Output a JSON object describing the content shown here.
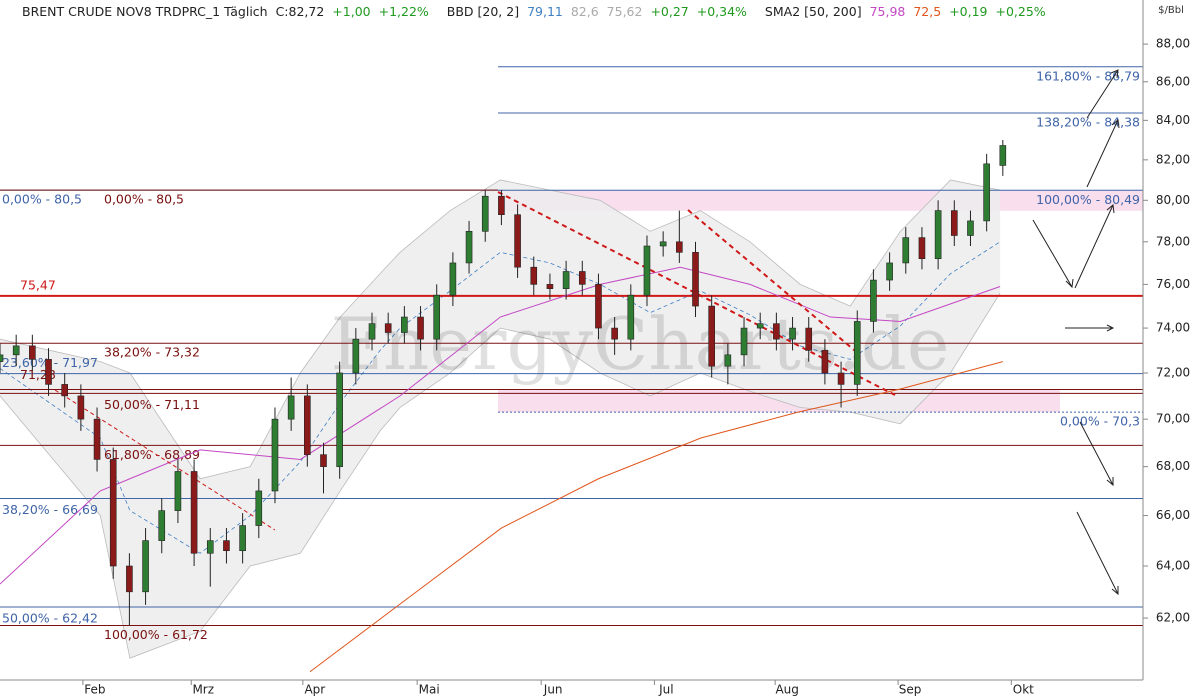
{
  "chart_data": {
    "type": "candlestick",
    "header": {
      "title": "BRENT CRUDE NOV8 TRDPRC_1 Täglich",
      "close": "C:82,72",
      "change": "+1,00",
      "change_pct": "+1,22%"
    },
    "bbd": {
      "name": "BBD [20, 2]",
      "values": [
        "79,11",
        "82,6",
        "75,62"
      ],
      "change": "+0,27",
      "change_pct": "+0,34%"
    },
    "sma": {
      "name": "SMA2 [50, 200]",
      "values": [
        "75,98",
        "72,5"
      ],
      "change": "+0,19",
      "change_pct": "+0,25%"
    },
    "y_unit": "$/Bbl",
    "watermark": "EnergyCharts.de",
    "log_scale": true,
    "ylim": [
      59.7,
      90.4
    ],
    "yticks": [
      {
        "value": 62,
        "label": "62,00"
      },
      {
        "value": 64,
        "label": "64,00"
      },
      {
        "value": 66,
        "label": "66,00"
      },
      {
        "value": 68,
        "label": "68,00"
      },
      {
        "value": 70,
        "label": "70,00"
      },
      {
        "value": 72,
        "label": "72,00"
      },
      {
        "value": 74,
        "label": "74,00"
      },
      {
        "value": 76,
        "label": "76,00"
      },
      {
        "value": 78,
        "label": "78,00"
      },
      {
        "value": 80,
        "label": "80,00"
      },
      {
        "value": 82,
        "label": "82,00"
      },
      {
        "value": 84,
        "label": "84,00"
      },
      {
        "value": 86,
        "label": "86,00"
      },
      {
        "value": 88,
        "label": "88,00"
      }
    ],
    "xlim": [
      0,
      212
    ],
    "xticks": [
      {
        "value": 17.6,
        "label": "Feb"
      },
      {
        "value": 37.7,
        "label": "Mrz"
      },
      {
        "value": 58.4,
        "label": "Apr"
      },
      {
        "value": 79.6,
        "label": "Mai"
      },
      {
        "value": 102.6,
        "label": "Jun"
      },
      {
        "value": 123.6,
        "label": "Jul"
      },
      {
        "value": 146,
        "label": "Aug"
      },
      {
        "value": 168.8,
        "label": "Sep"
      },
      {
        "value": 189.8,
        "label": "Okt"
      }
    ],
    "up_color": "#2f7d32",
    "down_color": "#8b1a1a",
    "candles": {
      "x": [
        0,
        3,
        6,
        9,
        12,
        15,
        18,
        21,
        24,
        27,
        30,
        33,
        36,
        39,
        42,
        45,
        48,
        51,
        54,
        57,
        60,
        63,
        66,
        69,
        72,
        75,
        78,
        81,
        84,
        87,
        90,
        93,
        96,
        99,
        102,
        105,
        108,
        111,
        114,
        117,
        120,
        123,
        126,
        129,
        132,
        135,
        138,
        141,
        144,
        147,
        150,
        153,
        156,
        159,
        162,
        165,
        168,
        171,
        174,
        177,
        180,
        183,
        186
      ],
      "open": [
        72.5,
        72.8,
        73.2,
        72.6,
        71.5,
        71.0,
        70.0,
        68.3,
        64.0,
        63.0,
        65.0,
        66.2,
        67.8,
        64.5,
        65.0,
        64.6,
        65.6,
        67.0,
        70.0,
        71.0,
        68.5,
        68.0,
        72.0,
        73.5,
        74.2,
        73.8,
        74.5,
        73.5,
        75.5,
        77.0,
        78.5,
        80.2,
        79.3,
        76.8,
        76.0,
        75.8,
        76.6,
        76.0,
        74.0,
        73.5,
        75.5,
        77.8,
        78.0,
        77.5,
        75.0,
        72.3,
        72.8,
        74.0,
        74.2,
        73.5,
        74.0,
        73.0,
        72.0,
        71.5,
        74.3,
        76.2,
        77.0,
        78.2,
        77.2,
        79.5,
        78.3,
        79.0,
        81.72
      ],
      "high": [
        73.3,
        73.7,
        73.7,
        73.1,
        72.0,
        71.5,
        70.5,
        68.8,
        64.5,
        65.5,
        66.7,
        68.3,
        68.3,
        65.5,
        65.5,
        66.1,
        67.5,
        70.5,
        71.8,
        71.5,
        69.0,
        72.5,
        74.0,
        74.7,
        74.7,
        75.0,
        75.0,
        76.0,
        77.5,
        79.0,
        80.5,
        80.5,
        79.8,
        77.3,
        76.5,
        77.1,
        77.1,
        76.5,
        74.5,
        76.0,
        78.3,
        78.5,
        79.5,
        78.0,
        75.5,
        73.3,
        74.5,
        74.7,
        74.7,
        74.5,
        74.5,
        73.5,
        72.5,
        74.8,
        76.7,
        77.5,
        78.7,
        78.7,
        80.0,
        80.0,
        79.5,
        82.3,
        83.0
      ],
      "low": [
        72.0,
        72.3,
        72.1,
        71.0,
        70.5,
        69.5,
        67.8,
        63.5,
        61.72,
        62.5,
        64.5,
        65.7,
        64.0,
        63.2,
        64.1,
        64.1,
        65.1,
        66.5,
        69.5,
        68.0,
        66.9,
        67.5,
        71.5,
        73.0,
        73.3,
        73.3,
        73.0,
        73.0,
        75.0,
        76.5,
        78.0,
        78.8,
        76.3,
        75.5,
        75.3,
        75.3,
        75.5,
        73.5,
        72.8,
        73.0,
        75.0,
        77.3,
        77.0,
        74.5,
        71.8,
        71.5,
        72.3,
        73.5,
        73.0,
        73.0,
        72.5,
        71.5,
        70.5,
        71.0,
        73.8,
        75.7,
        76.5,
        76.7,
        76.7,
        77.8,
        77.8,
        78.5,
        81.2
      ],
      "close": [
        72.8,
        73.2,
        72.6,
        71.5,
        71.0,
        70.0,
        68.3,
        64.0,
        63.0,
        65.0,
        66.2,
        67.8,
        64.5,
        65.0,
        64.6,
        65.6,
        67.0,
        70.0,
        71.0,
        68.5,
        68.0,
        72.0,
        73.5,
        74.2,
        73.8,
        74.5,
        73.5,
        75.5,
        77.0,
        78.5,
        80.2,
        79.3,
        76.8,
        76.0,
        75.8,
        76.6,
        76.0,
        74.0,
        73.5,
        75.5,
        77.8,
        78.0,
        77.5,
        75.0,
        72.3,
        72.8,
        74.0,
        74.2,
        73.5,
        74.0,
        73.0,
        72.0,
        71.5,
        74.3,
        76.2,
        77.0,
        78.2,
        77.2,
        79.5,
        78.3,
        79.0,
        81.8,
        82.72
      ]
    },
    "band": {
      "x": [
        0,
        18.6,
        24.1,
        37.1,
        46.4,
        55.7,
        63.1,
        70.5,
        74.2,
        83.5,
        92.8,
        102,
        111.3,
        120.6,
        129.9,
        139.1,
        148.4,
        157.7,
        167,
        176.3,
        185.5
      ],
      "upper": [
        73.5,
        72.5,
        72,
        67.5,
        68,
        72,
        74.5,
        76.5,
        77.5,
        79.5,
        81,
        80.5,
        80,
        78.5,
        79.5,
        78,
        76,
        75,
        78.5,
        81,
        80.5
      ],
      "middle": [
        72.2,
        69.2,
        66.2,
        64.5,
        66,
        68.2,
        70.7,
        73,
        74,
        75.7,
        77.5,
        77,
        76,
        74.7,
        75.7,
        74.6,
        73.2,
        72.6,
        74.1,
        76.5,
        78
      ],
      "lower": [
        71,
        66,
        60.5,
        61.5,
        64,
        64.5,
        67,
        69.5,
        70.5,
        72,
        74,
        73.5,
        72,
        71,
        72,
        71.2,
        70.5,
        70.3,
        69.8,
        72,
        75.6
      ]
    },
    "series": [
      {
        "color": "#c447c4",
        "x": [
          0,
          18.6,
          37.1,
          55.7,
          74.2,
          92.8,
          111.3,
          126.2,
          139.1,
          154,
          167,
          185.5
        ],
        "values": [
          63.3,
          67,
          68.7,
          68.3,
          71,
          74.5,
          76,
          76.8,
          76,
          74.5,
          74.3,
          75.9
        ]
      },
      {
        "color": "#e0561b",
        "x": [
          57.5,
          74,
          93,
          111,
          130,
          148,
          167,
          186
        ],
        "values": [
          60,
          62.5,
          65.5,
          67.5,
          69.2,
          70.3,
          71.3,
          72.5
        ]
      }
    ],
    "levels": [
      {
        "value": 86.79,
        "label": "161,80% - 86,79",
        "color": "#3f64a8"
      },
      {
        "value": 84.38,
        "label": "138,20% - 84,38",
        "color": "#3f64a8"
      },
      {
        "value": 80.49,
        "label": "100,00% - 80,49",
        "color": "#3f64a8"
      },
      {
        "value": 80.5,
        "label": "0,00% - 80,5",
        "color": "#3f64a8"
      },
      {
        "value": 80.5,
        "label": "0,00% - 80,5",
        "color": "#7a1010"
      },
      {
        "value": 75.47,
        "label": "75,47",
        "color": "#d01818"
      },
      {
        "value": 73.32,
        "label": "38,20% - 73,32",
        "color": "#7a1010"
      },
      {
        "value": 71.97,
        "label": "23,60% - 71,97",
        "color": "#3f64a8"
      },
      {
        "value": 71.28,
        "label": "71,28",
        "color": "#7a1010"
      },
      {
        "value": 71.11,
        "label": "50,00% - 71,11",
        "color": "#7a1010"
      },
      {
        "value": 70.3,
        "label": "0,00% - 70,3",
        "color": "#3f64a8"
      },
      {
        "value": 68.89,
        "label": "61,80% - 68,89",
        "color": "#7a1010"
      },
      {
        "value": 66.69,
        "label": "38,20% - 66,69",
        "color": "#3f64a8"
      },
      {
        "value": 62.42,
        "label": "50,00% - 62,42",
        "color": "#3f64a8"
      },
      {
        "value": 61.72,
        "label": "100,00% - 61,72",
        "color": "#7a1010"
      }
    ]
  }
}
